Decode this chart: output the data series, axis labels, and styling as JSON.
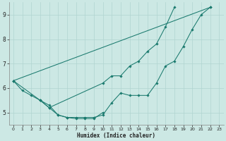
{
  "xlabel": "Humidex (Indice chaleur)",
  "x_values": [
    0,
    1,
    2,
    3,
    4,
    5,
    6,
    7,
    8,
    9,
    10,
    11,
    12,
    13,
    14,
    15,
    16,
    17,
    18,
    19,
    20,
    21,
    22,
    23
  ],
  "line_bottom": [
    6.3,
    5.9,
    5.7,
    5.5,
    5.3,
    4.9,
    4.8,
    4.8,
    4.8,
    4.8,
    4.9,
    5.4,
    5.8,
    5.7,
    5.7,
    5.7,
    6.2,
    6.9,
    7.1,
    7.7,
    8.4,
    9.0,
    9.3,
    null
  ],
  "line_top": [
    6.3,
    null,
    null,
    null,
    null,
    null,
    null,
    null,
    null,
    null,
    null,
    null,
    null,
    null,
    null,
    null,
    null,
    null,
    null,
    null,
    null,
    null,
    9.3,
    null
  ],
  "line_mid": [
    6.3,
    null,
    null,
    5.5,
    5.2,
    null,
    null,
    null,
    null,
    null,
    6.2,
    6.5,
    6.5,
    6.9,
    7.1,
    7.5,
    7.8,
    8.5,
    9.3,
    null,
    null,
    null,
    null,
    null
  ],
  "line_short_arc": [
    null,
    null,
    null,
    5.5,
    5.2,
    4.9,
    4.8,
    4.75,
    4.75,
    4.75,
    5.0,
    null,
    null,
    null,
    null,
    null,
    null,
    null,
    null,
    null,
    null,
    null,
    null,
    null
  ],
  "line_color": "#1a7a6e",
  "bg_color": "#cce8e4",
  "grid_color": "#b0d4d0",
  "ylim": [
    4.5,
    9.5
  ],
  "xlim": [
    -0.5,
    23.5
  ],
  "yticks": [
    5,
    6,
    7,
    8,
    9
  ],
  "xticks": [
    0,
    1,
    2,
    3,
    4,
    5,
    6,
    7,
    8,
    9,
    10,
    11,
    12,
    13,
    14,
    15,
    16,
    17,
    18,
    19,
    20,
    21,
    22,
    23
  ]
}
